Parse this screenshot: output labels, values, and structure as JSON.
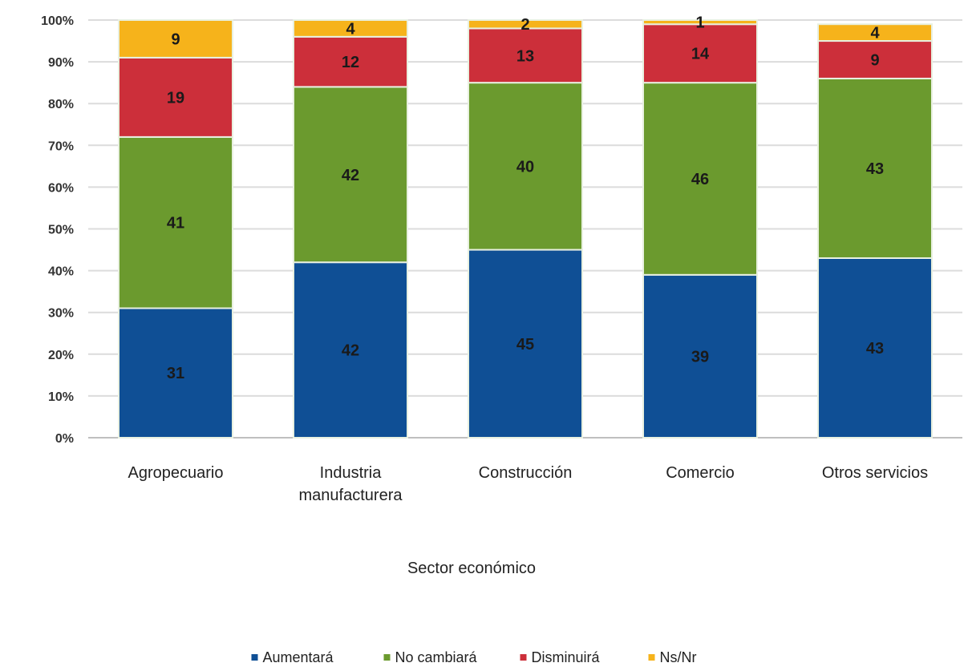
{
  "chart_data": {
    "type": "bar",
    "stacked": true,
    "percent": true,
    "title": "",
    "xlabel": "Sector económico",
    "ylabel": "",
    "ylim": [
      0,
      100
    ],
    "yticks": [
      "0%",
      "10%",
      "20%",
      "30%",
      "40%",
      "50%",
      "60%",
      "70%",
      "80%",
      "90%",
      "100%"
    ],
    "grid": true,
    "legend_position": "bottom",
    "categories": [
      "Agropecuario",
      "Industria manufacturera",
      "Construcción",
      "Comercio",
      "Otros servicios"
    ],
    "category_lines": [
      [
        "Agropecuario"
      ],
      [
        "Industria",
        "manufacturera"
      ],
      [
        "Construcción"
      ],
      [
        "Comercio"
      ],
      [
        "Otros servicios"
      ]
    ],
    "series": [
      {
        "name": "Aumentará",
        "color": "#0f4f95",
        "values": [
          31,
          42,
          45,
          39,
          43
        ]
      },
      {
        "name": "No cambiará",
        "color": "#6b9a2e",
        "values": [
          41,
          42,
          40,
          46,
          43
        ]
      },
      {
        "name": "Disminuirá",
        "color": "#cc2f3a",
        "values": [
          19,
          12,
          13,
          14,
          9
        ]
      },
      {
        "name": "Ns/Nr",
        "color": "#f6b31b",
        "values": [
          9,
          4,
          2,
          1,
          4
        ]
      }
    ],
    "data_labels": [
      [
        "31",
        "42",
        "45",
        "39",
        "43"
      ],
      [
        "41",
        "42",
        "40",
        "46",
        "43"
      ],
      [
        "19",
        "12",
        "13",
        "14",
        "9"
      ],
      [
        "9",
        "4",
        "2",
        "1",
        "4"
      ]
    ]
  }
}
